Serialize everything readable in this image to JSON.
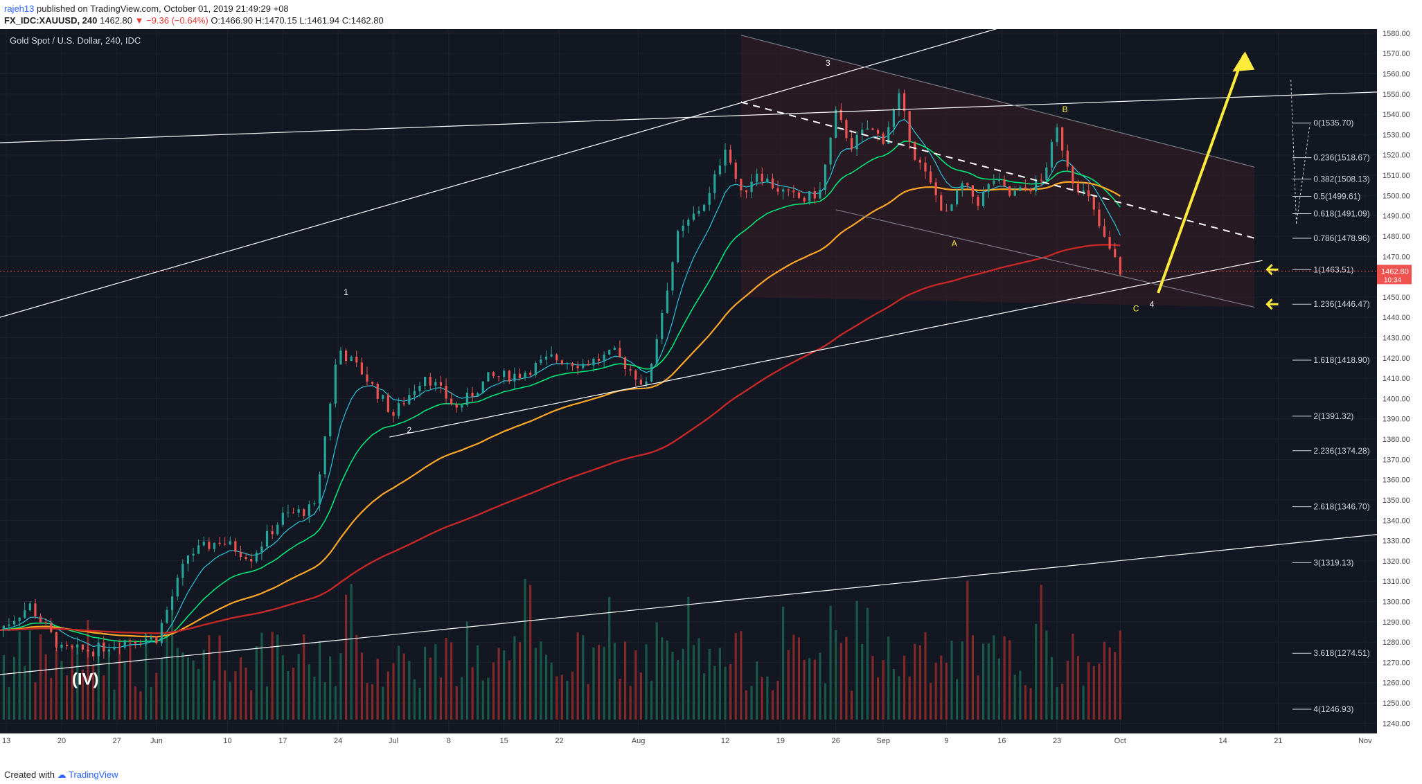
{
  "header": {
    "user": "rajeh13",
    "published_text": "published on TradingView.com, October 01, 2019 21:49:29 +08",
    "symbol_line": "FX_IDC:XAUUSD, 240",
    "last": "1462.80",
    "change": "▼ −9.36 (−0.64%)",
    "ohlc": "O:1466.90 H:1470.15 L:1461.94 C:1462.80"
  },
  "footer": {
    "created_with": "Created with",
    "brand": "TradingView"
  },
  "colors": {
    "background": "#131722",
    "up": "#26a69a",
    "down": "#ef5350",
    "ema_fast": "#26c6da",
    "ema_mid": "#00e676",
    "ema_slow": "#ffa726",
    "ema_long": "#c62828",
    "arrow": "#ffeb3b",
    "price_tag": "#ef5350"
  },
  "chart_data": {
    "type": "candlestick",
    "title": "Gold Spot / U.S. Dollar, 240, IDC",
    "ylim": [
      1235,
      1582
    ],
    "y_ticks": [
      1240,
      1250,
      1260,
      1270,
      1280,
      1290,
      1300,
      1310,
      1320,
      1330,
      1340,
      1350,
      1360,
      1370,
      1380,
      1390,
      1400,
      1410,
      1420,
      1430,
      1440,
      1450,
      1460,
      1470,
      1480,
      1490,
      1500,
      1510,
      1520,
      1530,
      1540,
      1550,
      1560,
      1570,
      1580
    ],
    "x_ticks": [
      {
        "label": "13",
        "day": 13
      },
      {
        "label": "20",
        "day": 20
      },
      {
        "label": "27",
        "day": 27
      },
      {
        "label": "Jun",
        "day": 32
      },
      {
        "label": "10",
        "day": 41
      },
      {
        "label": "17",
        "day": 48
      },
      {
        "label": "24",
        "day": 55
      },
      {
        "label": "Jul",
        "day": 62
      },
      {
        "label": "8",
        "day": 69
      },
      {
        "label": "15",
        "day": 76
      },
      {
        "label": "22",
        "day": 83
      },
      {
        "label": "Aug",
        "day": 93
      },
      {
        "label": "12",
        "day": 104
      },
      {
        "label": "19",
        "day": 111
      },
      {
        "label": "26",
        "day": 118
      },
      {
        "label": "Sep",
        "day": 124
      },
      {
        "label": "9",
        "day": 132
      },
      {
        "label": "16",
        "day": 139
      },
      {
        "label": "23",
        "day": 146
      },
      {
        "label": "Oct",
        "day": 154
      },
      {
        "label": "14",
        "day": 167
      },
      {
        "label": "21",
        "day": 174
      },
      {
        "label": "Nov",
        "day": 185
      }
    ],
    "x_range_days": [
      12.2,
      186.5
    ],
    "last_price": "1462.80",
    "countdown": "10:34",
    "price_path_days": [
      12,
      16,
      20,
      24,
      28,
      32,
      36,
      40,
      44,
      48,
      52,
      55,
      58,
      62,
      66,
      70,
      74,
      78,
      82,
      86,
      90,
      94,
      98,
      102,
      104,
      106,
      108,
      110,
      112,
      114,
      116,
      118,
      120,
      122,
      124,
      126,
      128,
      130,
      132,
      134,
      136,
      138,
      140,
      142,
      144,
      146,
      148,
      150,
      152,
      154
    ],
    "price_path": [
      1286,
      1298,
      1276,
      1276,
      1281,
      1282,
      1323,
      1330,
      1322,
      1342,
      1346,
      1425,
      1413,
      1392,
      1412,
      1395,
      1410,
      1412,
      1420,
      1417,
      1422,
      1406,
      1480,
      1500,
      1525,
      1500,
      1512,
      1505,
      1500,
      1498,
      1502,
      1540,
      1525,
      1533,
      1528,
      1548,
      1520,
      1505,
      1490,
      1505,
      1497,
      1508,
      1500,
      1503,
      1507,
      1532,
      1508,
      1498,
      1478,
      1462.8
    ],
    "fib_levels": [
      {
        "label": "0(1535.70)",
        "value": 1535.7
      },
      {
        "label": "0.236(1518.67)",
        "value": 1518.67
      },
      {
        "label": "0.382(1508.13)",
        "value": 1508.13
      },
      {
        "label": "0.5(1499.61)",
        "value": 1499.61
      },
      {
        "label": "0.618(1491.09)",
        "value": 1491.09
      },
      {
        "label": "0.786(1478.96)",
        "value": 1478.96
      },
      {
        "label": "1(1463.51)",
        "value": 1463.51
      },
      {
        "label": "1.236(1446.47)",
        "value": 1446.47
      },
      {
        "label": "1.618(1418.90)",
        "value": 1418.9
      },
      {
        "label": "2(1391.32)",
        "value": 1391.32
      },
      {
        "label": "2.236(1374.28)",
        "value": 1374.28
      },
      {
        "label": "2.618(1346.70)",
        "value": 1346.7
      },
      {
        "label": "3(1319.13)",
        "value": 1319.13
      },
      {
        "label": "3.618(1274.51)",
        "value": 1274.51
      },
      {
        "label": "4(1246.93)",
        "value": 1246.93
      }
    ],
    "wave_labels": [
      {
        "text": "(IV)",
        "day": 23,
        "price": 1259,
        "color": "#ffffff",
        "big": true
      },
      {
        "text": "1",
        "day": 56,
        "price": 1451,
        "color": "#ffffff"
      },
      {
        "text": "2",
        "day": 64,
        "price": 1383,
        "color": "#ffffff"
      },
      {
        "text": "3",
        "day": 117,
        "price": 1564,
        "color": "#ffffff"
      },
      {
        "text": "A",
        "day": 133,
        "price": 1475,
        "color": "#ffeb3b"
      },
      {
        "text": "B",
        "day": 147,
        "price": 1541,
        "color": "#ffeb3b"
      },
      {
        "text": "C",
        "day": 156,
        "price": 1443,
        "color": "#ffeb3b"
      },
      {
        "text": "4",
        "day": 158,
        "price": 1445,
        "color": "#ffffff"
      }
    ],
    "trendlines": [
      {
        "from": [
          12.2,
          1526
        ],
        "to": [
          186.5,
          1551
        ],
        "color": "#ffffff"
      },
      {
        "from": [
          12.2,
          1440
        ],
        "to": [
          140,
          1584
        ],
        "color": "#ffffff"
      },
      {
        "from": [
          12.2,
          1264
        ],
        "to": [
          186.5,
          1333
        ],
        "color": "#ffffff"
      },
      {
        "from": [
          61.5,
          1381
        ],
        "to": [
          172,
          1468
        ],
        "color": "#ffffff"
      },
      {
        "from": [
          106,
          1579
        ],
        "to": [
          171,
          1514
        ],
        "color": "#787b86"
      },
      {
        "from": [
          118,
          1493
        ],
        "to": [
          171,
          1445
        ],
        "color": "#787b86"
      },
      {
        "from": [
          106,
          1546
        ],
        "to": [
          171,
          1479
        ],
        "color": "#ffffff",
        "dashed": true
      }
    ]
  }
}
